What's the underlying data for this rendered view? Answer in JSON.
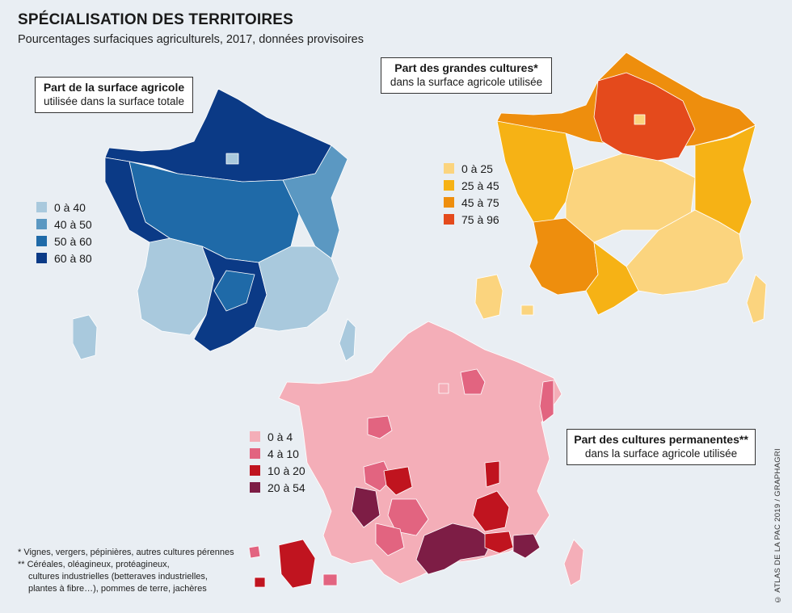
{
  "header": {
    "title": "SPÉCIALISATION DES TERRITOIRES",
    "subtitle": "Pourcentages surfaciques agriculturels, 2017, données provisoires"
  },
  "maps": [
    {
      "id": "agricole",
      "box_title": "Part de la surface agricole",
      "box_subtitle": "utilisée dans la surface totale",
      "legend": [
        {
          "label": "0 à 40",
          "color": "#a9c9dd"
        },
        {
          "label": "40 à 50",
          "color": "#5b98c2"
        },
        {
          "label": "50 à 60",
          "color": "#1f6aa8"
        },
        {
          "label": "60 à 80",
          "color": "#0b3a86"
        }
      ]
    },
    {
      "id": "grandes-cultures",
      "box_title": "Part des grandes cultures*",
      "box_subtitle": "dans la surface agricole utilisée",
      "legend": [
        {
          "label": "0 à 25",
          "color": "#fbd47e"
        },
        {
          "label": "25 à 45",
          "color": "#f6b215"
        },
        {
          "label": "45 à 75",
          "color": "#ee8e0d"
        },
        {
          "label": "75 à 96",
          "color": "#e44a1c"
        }
      ]
    },
    {
      "id": "cultures-permanentes",
      "box_title": "Part des cultures permanentes**",
      "box_subtitle": "dans la surface agricole utilisée",
      "legend": [
        {
          "label": "0 à 4",
          "color": "#f4aeb8"
        },
        {
          "label": "4 à 10",
          "color": "#e26480"
        },
        {
          "label": "10 à 20",
          "color": "#c0141f"
        },
        {
          "label": "20 à 54",
          "color": "#7d1d45"
        }
      ]
    }
  ],
  "notes": [
    "* Vignes, vergers, pépinières, autres cultures pérennes",
    "** Céréales, oléagineux, protéagineux,",
    "cultures industrielles (betteraves industrielles,",
    "plantes à fibre…), pommes de terre, jachères"
  ],
  "credit": "© ATLAS DE LA PAC 2019 / GRAPHAGRI"
}
